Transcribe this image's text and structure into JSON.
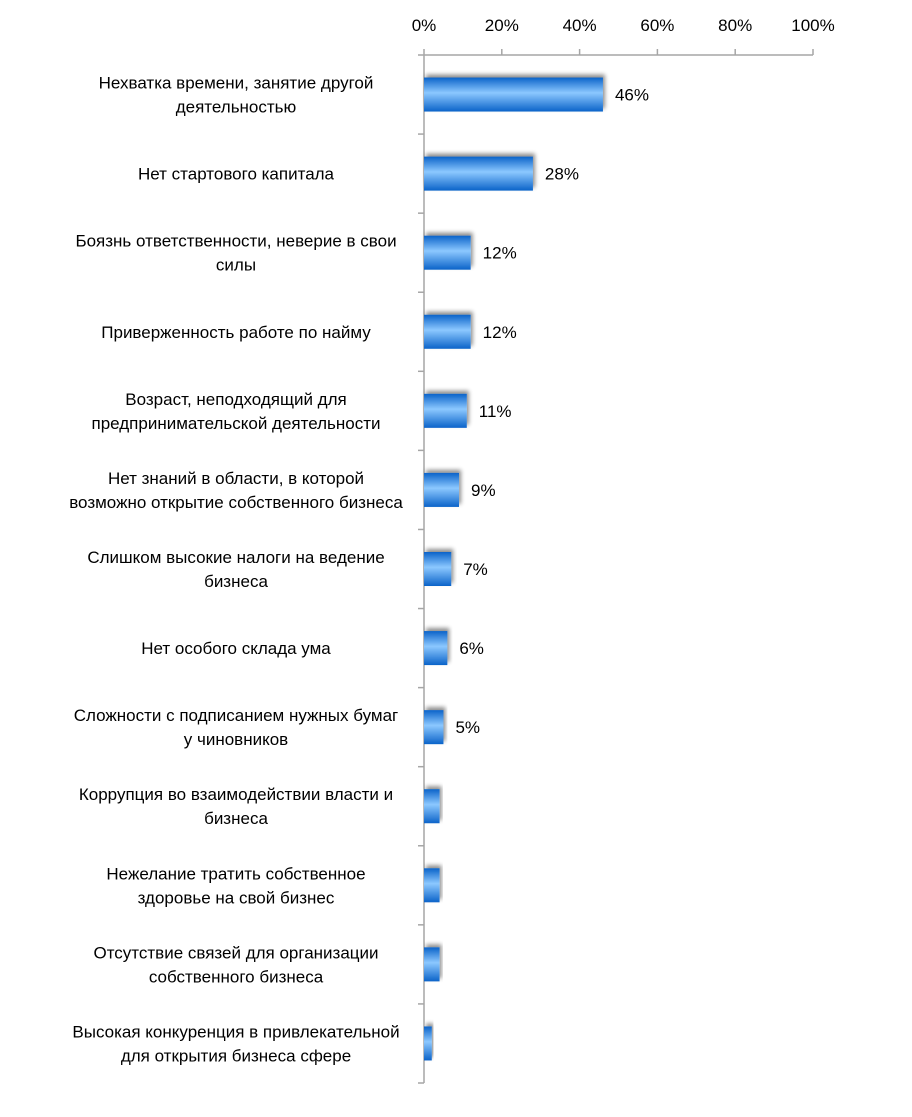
{
  "chart_data": {
    "type": "bar",
    "orientation": "horizontal",
    "title": "",
    "xlabel": "",
    "ylabel": "",
    "xlim": [
      0,
      100
    ],
    "x_ticks": [
      "0%",
      "20%",
      "40%",
      "60%",
      "80%",
      "100%"
    ],
    "axis_position": "top",
    "grid": false,
    "legend": "none",
    "categories": [
      [
        "Нехватка времени, занятие другой",
        "деятельностью"
      ],
      [
        "Нет стартового капитала"
      ],
      [
        "Боязнь ответственности, неверие в свои",
        "силы"
      ],
      [
        "Приверженность работе по найму"
      ],
      [
        "Возраст, неподходящий для",
        "предпринимательской деятельности"
      ],
      [
        "Нет знаний в области, в которой",
        "возможно открытие собственного бизнеса"
      ],
      [
        "Слишком высокие налоги на ведение",
        "бизнеса"
      ],
      [
        "Нет особого склада ума"
      ],
      [
        "Сложности с подписанием нужных бумаг",
        "у чиновников"
      ],
      [
        "Коррупция во взаимодействии власти и",
        "бизнеса"
      ],
      [
        "Нежелание тратить собственное",
        "здоровье на свой бизнес"
      ],
      [
        "Отсутствие связей для организации",
        "собственного бизнеса"
      ],
      [
        "Высокая конкуренция в привлекательной",
        "для открытия бизнеса сфере"
      ]
    ],
    "values": [
      46,
      28,
      12,
      12,
      11,
      9,
      7,
      6,
      5,
      4,
      4,
      4,
      2
    ],
    "data_labels": [
      "46%",
      "28%",
      "12%",
      "12%",
      "11%",
      "9%",
      "7%",
      "6%",
      "5%",
      "",
      "",
      "",
      ""
    ],
    "colors": {
      "bar_dark": "#0b63c9",
      "bar_mid": "#3d95ee",
      "bar_light": "#8cc8ff",
      "axis": "#a6a6a6",
      "shadow": "#8a8a8a"
    }
  }
}
